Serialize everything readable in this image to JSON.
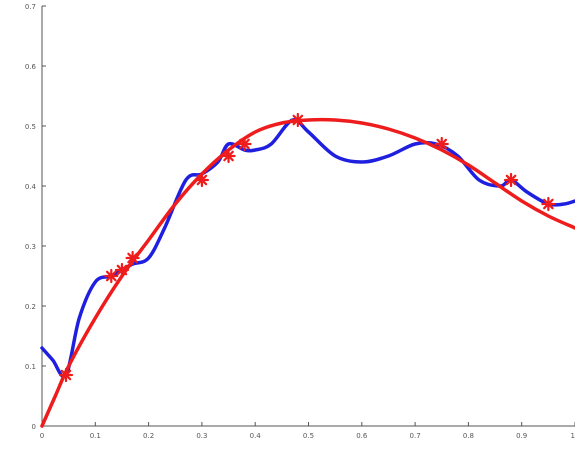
{
  "chart_data": {
    "type": "line",
    "title": "",
    "xlabel": "",
    "ylabel": "",
    "xlim": [
      0,
      1
    ],
    "ylim": [
      0,
      0.7
    ],
    "grid": false,
    "x_ticks": [
      "0",
      "0.1",
      "0.2",
      "0.3",
      "0.4",
      "0.5",
      "0.6",
      "0.7",
      "0.8",
      "0.9",
      "1"
    ],
    "y_ticks": [
      "0",
      "0.1",
      "0.2",
      "0.3",
      "0.4",
      "0.5",
      "0.6",
      "0.7"
    ],
    "colors": {
      "interpolant": "#1f1fe0",
      "fit": "#ee1c1c",
      "markers": "#ee1c1c",
      "axes": "#555555"
    },
    "series": [
      {
        "style": "blue-curve",
        "x": [
          0.0,
          0.02,
          0.045,
          0.07,
          0.1,
          0.13,
          0.15,
          0.17,
          0.2,
          0.23,
          0.27,
          0.3,
          0.33,
          0.35,
          0.38,
          0.4,
          0.43,
          0.47,
          0.5,
          0.55,
          0.6,
          0.65,
          0.7,
          0.74,
          0.78,
          0.82,
          0.86,
          0.88,
          0.91,
          0.95,
          0.98,
          1.0
        ],
        "y": [
          0.13,
          0.11,
          0.085,
          0.18,
          0.24,
          0.25,
          0.26,
          0.27,
          0.28,
          0.33,
          0.41,
          0.42,
          0.44,
          0.47,
          0.46,
          0.46,
          0.47,
          0.51,
          0.49,
          0.45,
          0.44,
          0.45,
          0.47,
          0.47,
          0.45,
          0.41,
          0.4,
          0.41,
          0.39,
          0.37,
          0.37,
          0.375
        ]
      },
      {
        "style": "red-curve",
        "x": [
          0.0,
          0.025,
          0.05,
          0.1,
          0.15,
          0.2,
          0.25,
          0.3,
          0.35,
          0.4,
          0.45,
          0.5,
          0.55,
          0.6,
          0.65,
          0.7,
          0.75,
          0.8,
          0.85,
          0.9,
          0.95,
          1.0
        ],
        "y": [
          0.0,
          0.05,
          0.1,
          0.18,
          0.25,
          0.31,
          0.37,
          0.42,
          0.46,
          0.49,
          0.505,
          0.51,
          0.51,
          0.505,
          0.495,
          0.48,
          0.46,
          0.435,
          0.405,
          0.375,
          0.35,
          0.33
        ]
      },
      {
        "style": "red-star-markers",
        "x": [
          0.045,
          0.13,
          0.15,
          0.17,
          0.3,
          0.35,
          0.38,
          0.48,
          0.75,
          0.88,
          0.95
        ],
        "y": [
          0.085,
          0.25,
          0.26,
          0.28,
          0.41,
          0.45,
          0.47,
          0.51,
          0.47,
          0.41,
          0.37
        ]
      }
    ]
  }
}
